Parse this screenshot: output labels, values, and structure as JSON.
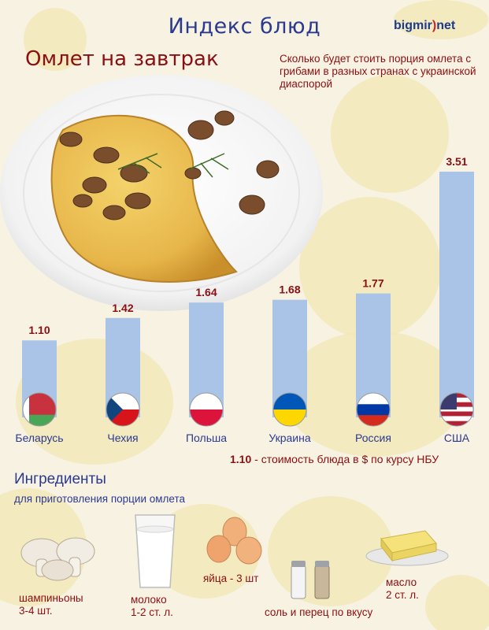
{
  "header": {
    "title": "Индекс блюд",
    "logo_main": "bigmir",
    "logo_sep": ")",
    "logo_tld": "net"
  },
  "dish": {
    "title": "Омлет на завтрак",
    "subtitle": "Сколько будет стоить порция омлета с грибами  в разных странах с украинской диаспорой"
  },
  "chart_data": {
    "type": "bar",
    "categories": [
      "Беларусь",
      "Чехия",
      "Польша",
      "Украина",
      "Россия",
      "США"
    ],
    "values": [
      1.1,
      1.42,
      1.64,
      1.68,
      1.77,
      3.51
    ],
    "value_labels": [
      "1.10",
      "1.42",
      "1.64",
      "1.68",
      "1.77",
      "3.51"
    ],
    "title": "",
    "xlabel": "",
    "ylabel": "",
    "ylim": [
      0,
      3.6
    ],
    "grid": false,
    "bar_color": "#a9c4e6",
    "label_color": "#8b0f12",
    "flags": [
      "belarus-flag-icon",
      "czech-flag-icon",
      "poland-flag-icon",
      "ukraine-flag-icon",
      "russia-flag-icon",
      "usa-flag-icon"
    ]
  },
  "legend": {
    "value": "1.10",
    "text": " - стоимость блюда в $ по курсу НБУ"
  },
  "ingredients": {
    "title": "Ингредиенты",
    "subtitle": "для приготовления порции омлета",
    "items": [
      {
        "line1": "шампиньоны",
        "line2": "3-4 шт.",
        "icon": "mushrooms-icon"
      },
      {
        "line1": "молоко",
        "line2": "1-2 ст. л.",
        "icon": "milk-glass-icon"
      },
      {
        "line1": "яйца - 3 шт",
        "line2": "",
        "icon": "eggs-icon"
      },
      {
        "line1": "соль и перец по вкусу",
        "line2": "",
        "icon": "salt-pepper-icon"
      },
      {
        "line1": "масло",
        "line2": "2 ст. л.",
        "icon": "butter-icon"
      }
    ]
  }
}
